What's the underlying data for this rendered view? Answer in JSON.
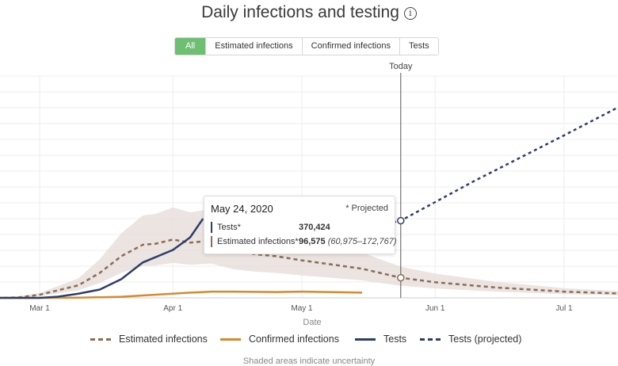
{
  "header": {
    "title": "Daily infections and testing",
    "info_icon": "info-icon"
  },
  "tabs": [
    {
      "label": "All",
      "active": true
    },
    {
      "label": "Estimated infections",
      "active": false
    },
    {
      "label": "Confirmed infections",
      "active": false
    },
    {
      "label": "Tests",
      "active": false
    }
  ],
  "today_label": "Today",
  "tooltip": {
    "date": "May 24, 2020",
    "projected_note": "* Projected",
    "tests_label": "Tests*",
    "tests_value": "370,424",
    "est_label": "Estimated infections*",
    "est_value": "96,575",
    "est_range": "(60,975–172,767)"
  },
  "legend": [
    {
      "label": "Estimated infections",
      "color": "#8a6d57",
      "dashed": true
    },
    {
      "label": "Confirmed infections",
      "color": "#d68a2e",
      "dashed": false
    },
    {
      "label": "Tests",
      "color": "#2c3e6a",
      "dashed": false
    },
    {
      "label": "Tests (projected)",
      "color": "#2c3e6a",
      "dashed": true
    }
  ],
  "footnote": "Shaded areas indicate uncertainty",
  "chart_data": {
    "type": "line",
    "xlabel": "Date",
    "x_ticks": [
      "Mar 1",
      "Apr 1",
      "May 1",
      "Jun 1",
      "Jul 1"
    ],
    "today": "May 24",
    "series": [
      {
        "name": "Estimated infections",
        "x": [
          "Feb 20",
          "Feb 25",
          "Mar 1",
          "Mar 5",
          "Mar 10",
          "Mar 15",
          "Mar 20",
          "Mar 25",
          "Mar 28",
          "Apr 1",
          "Apr 5",
          "Apr 10",
          "Apr 15",
          "Apr 20",
          "Apr 25",
          "May 1",
          "May 8",
          "May 15",
          "May 24",
          "Jun 1",
          "Jun 15",
          "Jul 1",
          "Jul 15"
        ],
        "y": [
          0,
          2000,
          15000,
          35000,
          60000,
          120000,
          200000,
          255000,
          260000,
          280000,
          265000,
          275000,
          230000,
          210000,
          200000,
          180000,
          160000,
          140000,
          96575,
          75000,
          50000,
          30000,
          20000
        ]
      },
      {
        "name": "Confirmed infections",
        "x": [
          "Feb 20",
          "Mar 1",
          "Mar 10",
          "Mar 20",
          "Mar 28",
          "Apr 5",
          "Apr 10",
          "Apr 15",
          "Apr 25",
          "May 1",
          "May 10",
          "May 15"
        ],
        "y": [
          0,
          0,
          1000,
          5000,
          15000,
          25000,
          30000,
          30000,
          28000,
          30000,
          27000,
          25000
        ]
      },
      {
        "name": "Tests",
        "x": [
          "Feb 20",
          "Mar 1",
          "Mar 5",
          "Mar 10",
          "Mar 15",
          "Mar 20",
          "Mar 25",
          "Apr 1",
          "Apr 5",
          "Apr 8"
        ],
        "y": [
          0,
          0,
          5000,
          20000,
          40000,
          90000,
          170000,
          230000,
          290000,
          380000
        ]
      },
      {
        "name": "Tests (projected)",
        "x": [
          "May 15",
          "May 24",
          "Jun 10",
          "Jul 1",
          "Jul 15"
        ],
        "y": [
          330000,
          370424,
          560000,
          780000,
          930000
        ]
      }
    ]
  }
}
